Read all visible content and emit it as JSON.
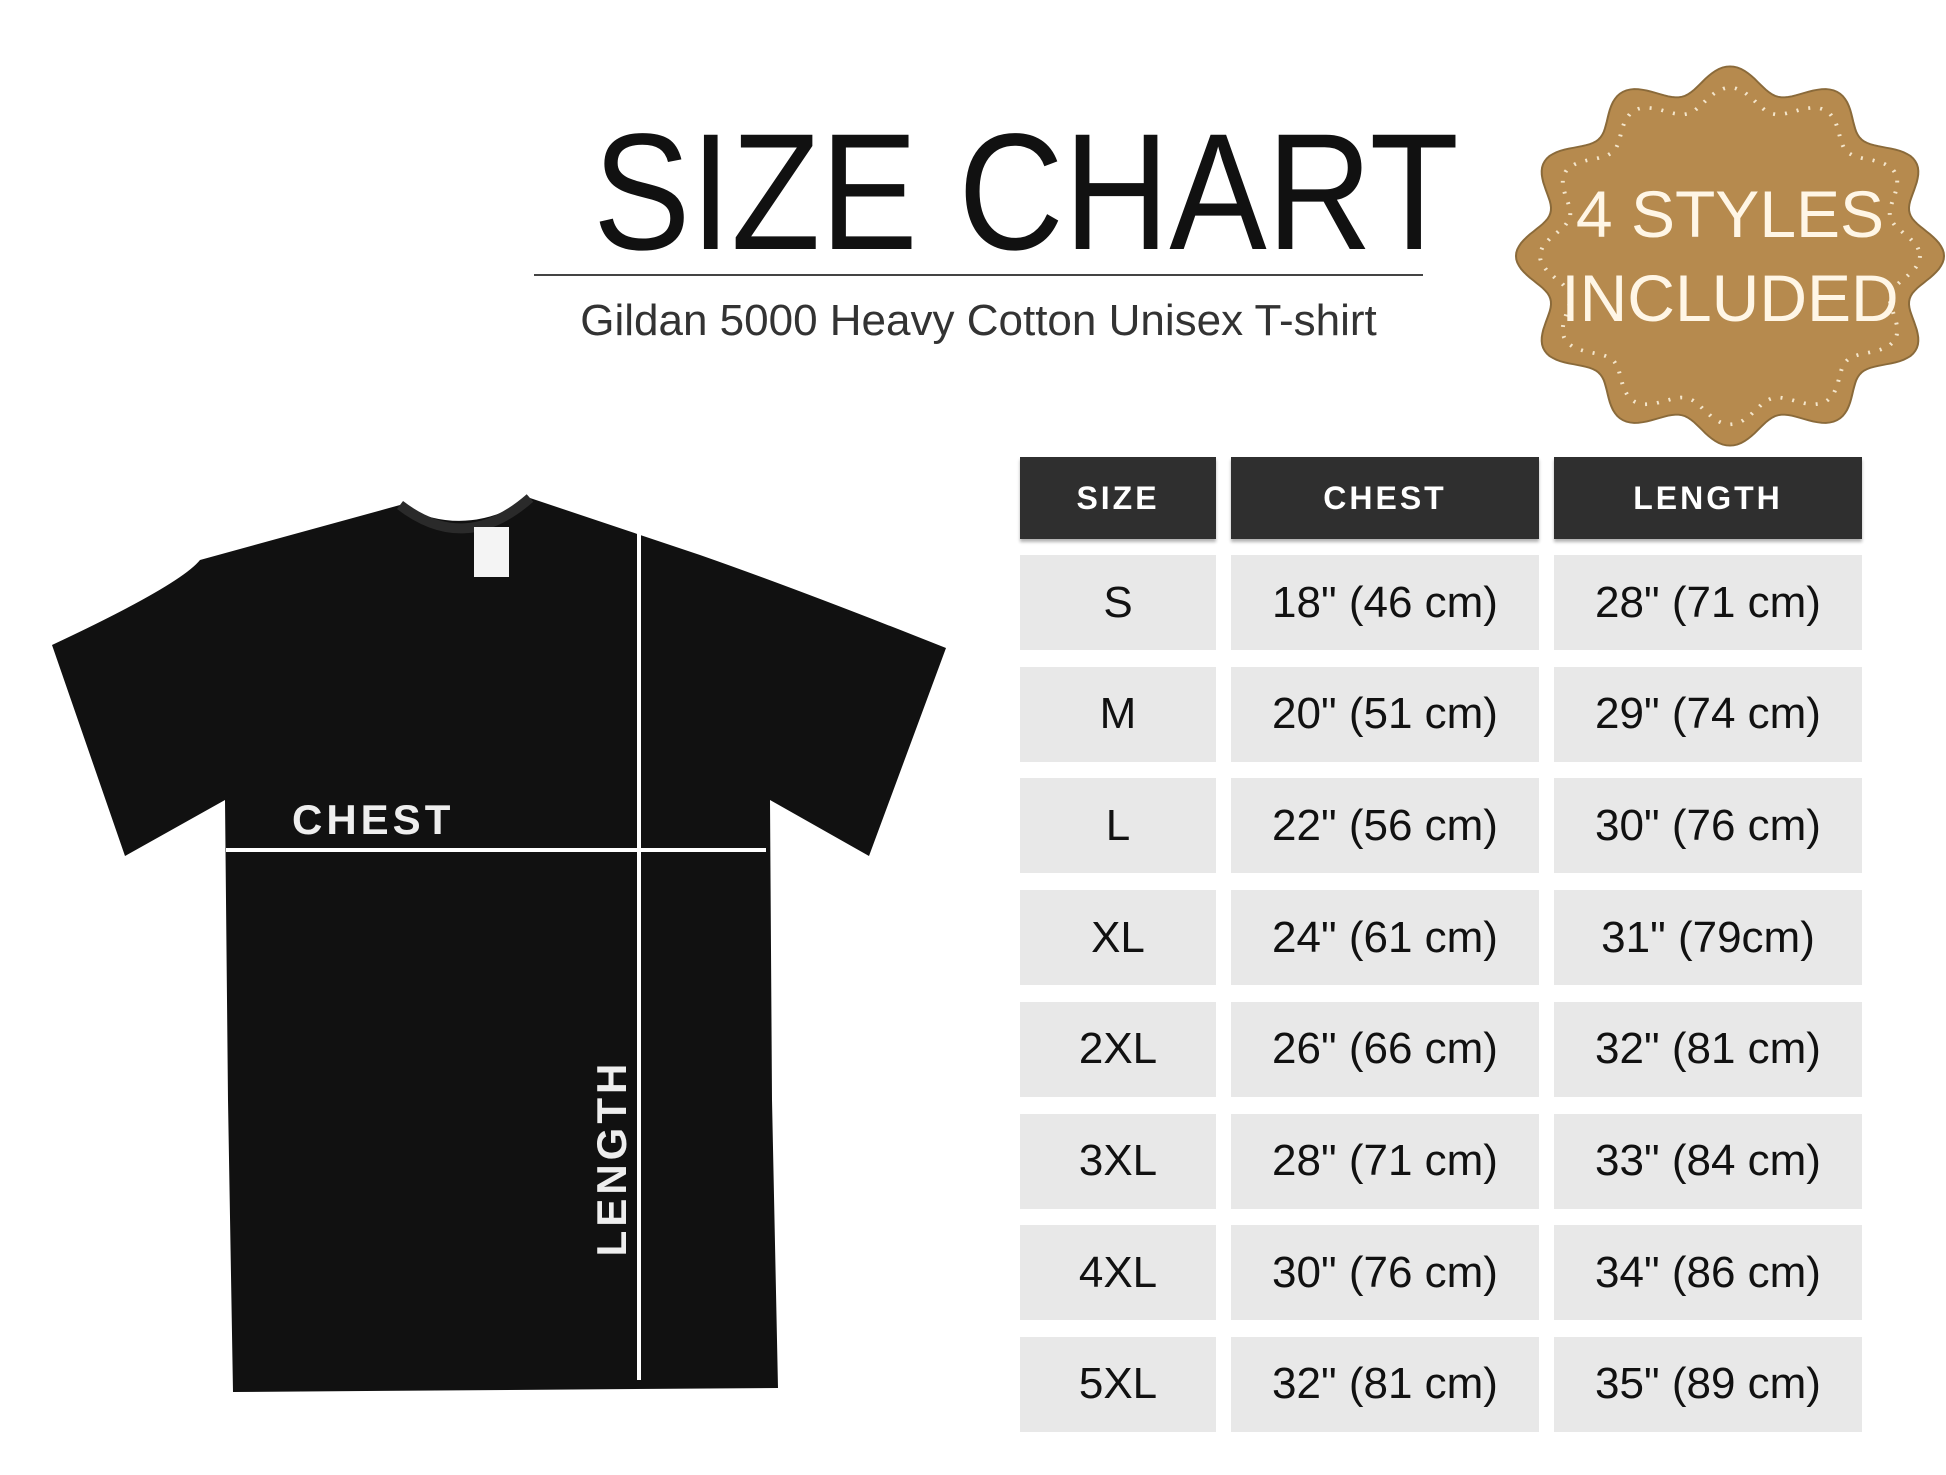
{
  "header": {
    "title": "SIZE CHART",
    "subtitle": "Gildan 5000 Heavy Cotton Unisex T-shirt"
  },
  "badge": {
    "line1": "4 STYLES",
    "line2": "INCLUDED",
    "color": "#b68a4e"
  },
  "diagram": {
    "chest_label": "CHEST",
    "length_label": "LENGTH",
    "shirt_color": "#111111"
  },
  "table": {
    "headers": [
      "SIZE",
      "CHEST",
      "LENGTH"
    ],
    "rows": [
      [
        "S",
        "18\" (46 cm)",
        "28\" (71 cm)"
      ],
      [
        "M",
        "20\" (51 cm)",
        "29\" (74 cm)"
      ],
      [
        "L",
        "22\" (56 cm)",
        "30\" (76 cm)"
      ],
      [
        "XL",
        "24\" (61 cm)",
        "31\" (79cm)"
      ],
      [
        "2XL",
        "26\" (66 cm)",
        "32\" (81 cm)"
      ],
      [
        "3XL",
        "28\" (71 cm)",
        "33\" (84 cm)"
      ],
      [
        "4XL",
        "30\" (76 cm)",
        "34\" (86 cm)"
      ],
      [
        "5XL",
        "32\" (81 cm)",
        "35\" (89 cm)"
      ]
    ]
  }
}
